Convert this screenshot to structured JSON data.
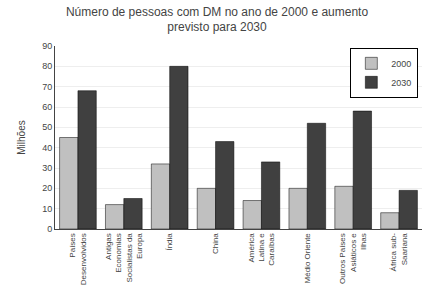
{
  "chart_data": {
    "type": "bar",
    "title": "Número de pessoas com DM no ano de 2000 e aumento\nprevisto para 2030",
    "ylabel": "Milhões",
    "categories": [
      "Países\nDesenvolvidos",
      "Antigas\nEconomias\nSocialistas da\nEuropa",
      "Índia",
      "China",
      "América\nLatina e\nCaraíbas",
      "Médio Oriente",
      "Outros Países\nAsiáticos e\nIlhas",
      "África sub-\nSaariana"
    ],
    "series": [
      {
        "name": "2000",
        "color": "#c0c0c0",
        "values": [
          45,
          12,
          32,
          20,
          14,
          20,
          21,
          8
        ]
      },
      {
        "name": "2030",
        "color": "#404040",
        "values": [
          68,
          15,
          80,
          43,
          33,
          52,
          58,
          19
        ]
      }
    ],
    "ylim": [
      0,
      90
    ],
    "yticks": [
      0,
      10,
      20,
      30,
      40,
      50,
      60,
      70,
      80,
      90
    ],
    "grid": true,
    "legend": "upper right"
  }
}
